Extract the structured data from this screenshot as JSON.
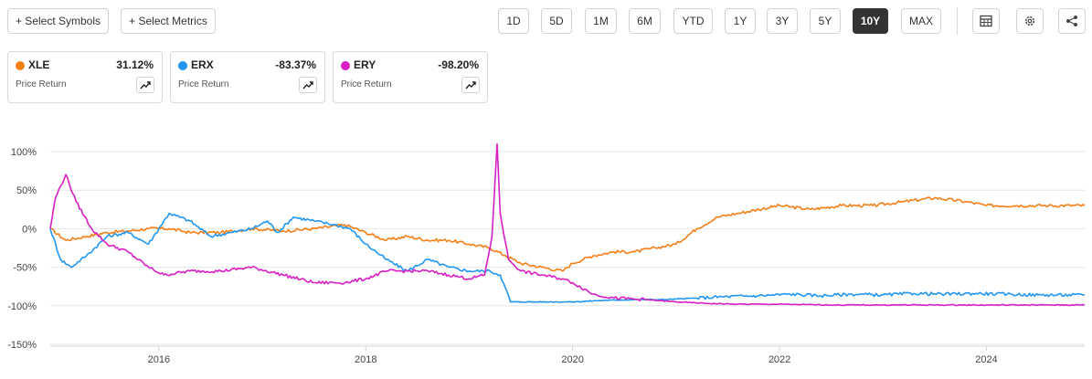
{
  "toolbar": {
    "select_symbols": "+ Select Symbols",
    "select_metrics": "+ Select Metrics",
    "ranges": [
      "1D",
      "5D",
      "1M",
      "6M",
      "YTD",
      "1Y",
      "3Y",
      "5Y",
      "10Y",
      "MAX"
    ],
    "active_range": "10Y"
  },
  "cards": [
    {
      "symbol": "XLE",
      "value": "31.12%",
      "sub": "Price Return",
      "color": "#f57f17"
    },
    {
      "symbol": "ERX",
      "value": "-83.37%",
      "sub": "Price Return",
      "color": "#2196f3"
    },
    {
      "symbol": "ERY",
      "value": "-98.20%",
      "sub": "Price Return",
      "color": "#d81fc5"
    }
  ],
  "chart_data": {
    "type": "line",
    "x_ticks": [
      "2016",
      "2018",
      "2020",
      "2022",
      "2024"
    ],
    "y_ticks": [
      "100%",
      "50%",
      "0%",
      "-50%",
      "-100%",
      "-150%"
    ],
    "ylim": [
      -150,
      100
    ],
    "xlim": [
      2014.95,
      2024.95
    ],
    "grid": "horizontal",
    "series": [
      {
        "name": "XLE",
        "color": "#f57f17",
        "x": [
          2014.95,
          2015.1,
          2015.3,
          2015.5,
          2015.7,
          2015.9,
          2016.1,
          2016.3,
          2016.6,
          2016.9,
          2017.2,
          2017.5,
          2017.8,
          2018.0,
          2018.2,
          2018.4,
          2018.6,
          2018.8,
          2019.0,
          2019.2,
          2019.35,
          2019.5,
          2019.7,
          2019.9,
          2020.0,
          2020.2,
          2020.4,
          2020.6,
          2020.8,
          2021.0,
          2021.2,
          2021.4,
          2021.6,
          2021.8,
          2022.0,
          2022.3,
          2022.6,
          2022.9,
          2023.2,
          2023.5,
          2023.8,
          2024.0,
          2024.3,
          2024.6,
          2024.95
        ],
        "values": [
          0,
          -15,
          -10,
          -5,
          -3,
          0,
          0,
          -5,
          -5,
          0,
          -3,
          0,
          5,
          -5,
          -15,
          -10,
          -15,
          -15,
          -20,
          -25,
          -35,
          -45,
          -50,
          -55,
          -45,
          -35,
          -30,
          -30,
          -25,
          -20,
          0,
          15,
          20,
          25,
          30,
          25,
          30,
          30,
          35,
          40,
          35,
          30,
          30,
          30,
          30
        ]
      },
      {
        "name": "ERX",
        "color": "#2196f3",
        "x": [
          2014.95,
          2015.05,
          2015.15,
          2015.3,
          2015.5,
          2015.7,
          2015.9,
          2016.0,
          2016.1,
          2016.3,
          2016.5,
          2016.7,
          2016.9,
          2017.05,
          2017.15,
          2017.3,
          2017.5,
          2017.7,
          2017.85,
          2018.0,
          2018.1,
          2018.2,
          2018.4,
          2018.6,
          2018.8,
          2019.0,
          2019.2,
          2019.3,
          2019.4,
          2019.5,
          2019.8,
          2020.0,
          2020.3,
          2020.6,
          2020.9,
          2021.2,
          2021.5,
          2021.8,
          2022.1,
          2022.4,
          2022.7,
          2023.0,
          2023.3,
          2023.6,
          2023.9,
          2024.2,
          2024.5,
          2024.95
        ],
        "values": [
          0,
          -40,
          -50,
          -35,
          -10,
          -5,
          -20,
          0,
          20,
          10,
          -10,
          -5,
          0,
          10,
          -5,
          15,
          10,
          5,
          0,
          -20,
          -30,
          -40,
          -55,
          -40,
          -50,
          -55,
          -55,
          -60,
          -95,
          -95,
          -95,
          -95,
          -93,
          -92,
          -92,
          -90,
          -88,
          -87,
          -85,
          -87,
          -85,
          -86,
          -84,
          -85,
          -84,
          -85,
          -86,
          -86
        ]
      },
      {
        "name": "ERY",
        "color": "#d81fc5",
        "x": [
          2014.95,
          2015.0,
          2015.1,
          2015.2,
          2015.35,
          2015.5,
          2015.7,
          2015.9,
          2016.05,
          2016.3,
          2016.6,
          2016.9,
          2017.2,
          2017.5,
          2017.8,
          2018.0,
          2018.2,
          2018.4,
          2018.6,
          2018.8,
          2019.0,
          2019.15,
          2019.22,
          2019.27,
          2019.3,
          2019.38,
          2019.5,
          2019.7,
          2019.9,
          2020.0,
          2020.2,
          2020.4,
          2020.7,
          2021.0,
          2021.3,
          2021.6,
          2022.0,
          2022.5,
          2023.0,
          2023.5,
          2024.0,
          2024.5,
          2024.95
        ],
        "values": [
          0,
          40,
          70,
          35,
          0,
          -20,
          -30,
          -50,
          -60,
          -55,
          -55,
          -50,
          -60,
          -70,
          -70,
          -65,
          -55,
          -55,
          -55,
          -60,
          -65,
          -60,
          -10,
          110,
          20,
          -40,
          -55,
          -60,
          -65,
          -70,
          -85,
          -90,
          -92,
          -95,
          -97,
          -98,
          -98,
          -99,
          -99,
          -99,
          -99,
          -99,
          -99
        ]
      }
    ]
  }
}
